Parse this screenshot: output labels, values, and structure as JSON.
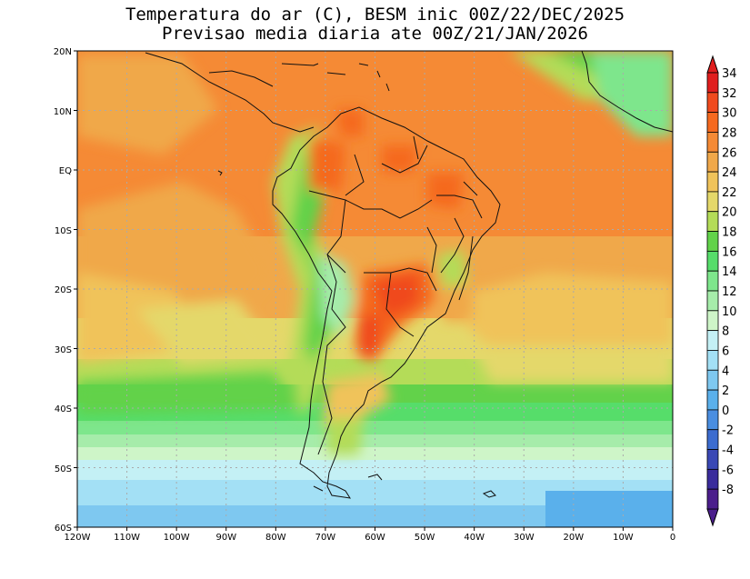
{
  "title": {
    "line1": "Temperatura do ar (C), BESM inic 00Z/22/DEC/2025",
    "line2": "Previsao media diaria ate 00Z/21/JAN/2026"
  },
  "map": {
    "lon_range": [
      -120,
      0
    ],
    "lat_range": [
      -60,
      20
    ],
    "lat_ticks": [
      {
        "value": 20,
        "label": "20N"
      },
      {
        "value": 10,
        "label": "10N"
      },
      {
        "value": 0,
        "label": "EQ"
      },
      {
        "value": -10,
        "label": "10S"
      },
      {
        "value": -20,
        "label": "20S"
      },
      {
        "value": -30,
        "label": "30S"
      },
      {
        "value": -40,
        "label": "40S"
      },
      {
        "value": -50,
        "label": "50S"
      },
      {
        "value": -60,
        "label": "60S"
      }
    ],
    "lon_ticks": [
      {
        "value": -120,
        "label": "120W"
      },
      {
        "value": -110,
        "label": "110W"
      },
      {
        "value": -100,
        "label": "100W"
      },
      {
        "value": -90,
        "label": "90W"
      },
      {
        "value": -80,
        "label": "80W"
      },
      {
        "value": -70,
        "label": "70W"
      },
      {
        "value": -60,
        "label": "60W"
      },
      {
        "value": -50,
        "label": "50W"
      },
      {
        "value": -40,
        "label": "40W"
      },
      {
        "value": -30,
        "label": "30W"
      },
      {
        "value": -20,
        "label": "20W"
      },
      {
        "value": -10,
        "label": "10W"
      },
      {
        "value": 0,
        "label": "0"
      }
    ]
  },
  "colorbar": {
    "levels": [
      {
        "label": "34",
        "color": "#e01e1e"
      },
      {
        "label": "32",
        "color": "#f04a1e"
      },
      {
        "label": "30",
        "color": "#f5691f"
      },
      {
        "label": "28",
        "color": "#f58a35"
      },
      {
        "label": "26",
        "color": "#f0a84a"
      },
      {
        "label": "24",
        "color": "#f0c35a"
      },
      {
        "label": "22",
        "color": "#e4d86a"
      },
      {
        "label": "20",
        "color": "#b4dc58"
      },
      {
        "label": "18",
        "color": "#62d24a"
      },
      {
        "label": "16",
        "color": "#56dd6a"
      },
      {
        "label": "14",
        "color": "#7ee68c"
      },
      {
        "label": "12",
        "color": "#a6ecaa"
      },
      {
        "label": "10",
        "color": "#cef5c8"
      },
      {
        "label": "8",
        "color": "#c4f0f5"
      },
      {
        "label": "6",
        "color": "#a3e0f5"
      },
      {
        "label": "4",
        "color": "#7ec8f0"
      },
      {
        "label": "2",
        "color": "#5ab0eb"
      },
      {
        "label": "0",
        "color": "#4a8ee0"
      },
      {
        "label": "-2",
        "color": "#3c6ccf"
      },
      {
        "label": "-4",
        "color": "#3a48b5"
      },
      {
        "label": "-6",
        "color": "#3a2c9c"
      },
      {
        "label": "-8",
        "color": "#4b1e8c"
      }
    ],
    "over_color": "#e01e1e",
    "under_color": "#4b1e8c"
  }
}
